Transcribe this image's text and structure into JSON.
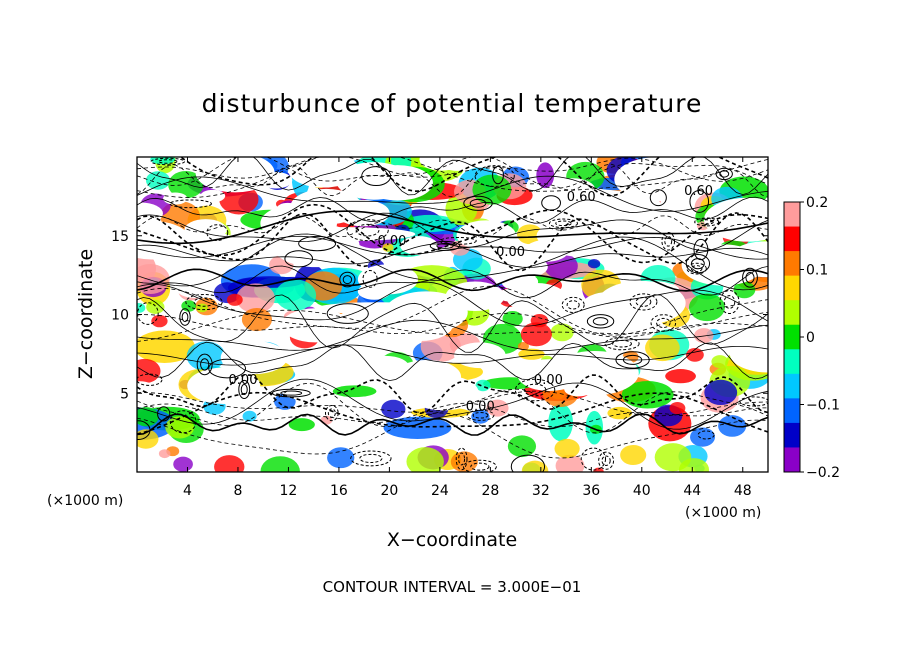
{
  "chart_data": {
    "type": "heatmap",
    "title": "disturbunce of potential temperature",
    "xlabel": "X−coordinate",
    "ylabel": "Z−coordinate",
    "x_unit": "(×1000 m)",
    "y_unit": "(×1000 m)",
    "xlim": [
      0,
      50
    ],
    "ylim": [
      0,
      20
    ],
    "x_ticks": [
      4,
      8,
      12,
      16,
      20,
      24,
      28,
      32,
      36,
      40,
      44,
      48
    ],
    "y_ticks": [
      5,
      10,
      15
    ],
    "x_tick_labels": [
      "4",
      "8",
      "12",
      "16",
      "20",
      "24",
      "28",
      "32",
      "36",
      "40",
      "44",
      "48"
    ],
    "y_tick_labels": [
      "5",
      "10",
      "15"
    ],
    "colorbar": {
      "range": [
        -0.2,
        0.2
      ],
      "ticks": [
        0.2,
        0.1,
        0,
        -0.1,
        -0.2
      ],
      "tick_labels": [
        "0.2",
        "0.1",
        "0",
        "−0.1",
        "−0.2"
      ],
      "colors": [
        "#ff9c9c",
        "#ff0000",
        "#ff7a00",
        "#ffd700",
        "#b0ff00",
        "#00e000",
        "#00ffc0",
        "#00c8ff",
        "#0064ff",
        "#0000c8",
        "#8a00c8"
      ]
    },
    "contour_interval_label": "CONTOUR INTERVAL = 3.000E−01",
    "contour_labels": [
      {
        "text": "0.60",
        "x": 44.5,
        "z": 17.6
      },
      {
        "text": "0.60",
        "x": 35.2,
        "z": 17.2
      },
      {
        "text": "0.00",
        "x": 20.2,
        "z": 14.4
      },
      {
        "text": "0.00",
        "x": 29.6,
        "z": 13.7
      },
      {
        "text": "0.00",
        "x": 27.2,
        "z": 3.9
      },
      {
        "text": "0.00",
        "x": 8.4,
        "z": 5.6
      },
      {
        "text": "0.00",
        "x": 32.6,
        "z": 5.6
      }
    ],
    "grid": false
  }
}
